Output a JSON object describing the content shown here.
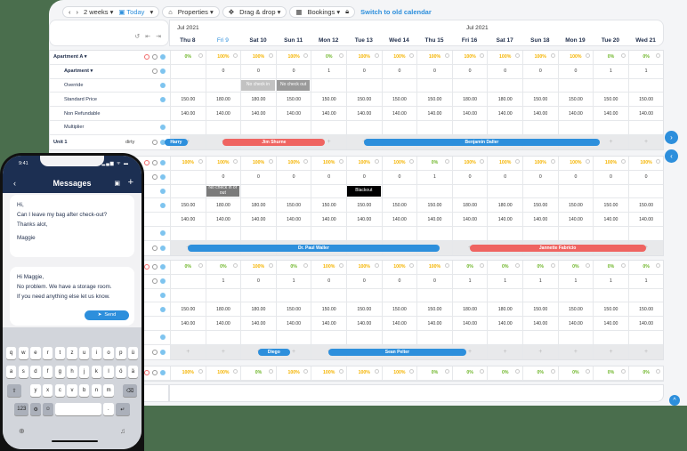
{
  "toolbar": {
    "prev": "‹",
    "next": "›",
    "range": "2 weeks ▾",
    "today": "Today",
    "today_dropdown": "▾",
    "properties": "Properties ▾",
    "dragdrop": "Drag & drop ▾",
    "bookings": "Bookings ▾",
    "switch_link": "Switch to old calendar"
  },
  "header": {
    "month_left": "Jul 2021",
    "month_right": "Jul 2021",
    "controls": [
      "↺",
      "⇤",
      "⇥"
    ],
    "days": [
      "Thu 8",
      "Fri 9",
      "Sat 10",
      "Sun 11",
      "Mon 12",
      "Tue 13",
      "Wed 14",
      "Thu 15",
      "Fri 16",
      "Sat 17",
      "Sun 18",
      "Mon 19",
      "Tue 20",
      "Wed 21"
    ],
    "today_index": 1
  },
  "sections": [
    {
      "title": "Apartment A ▾",
      "occupancy": [
        "0%",
        "100%",
        "100%",
        "100%",
        "0%",
        "100%",
        "100%",
        "100%",
        "100%",
        "100%",
        "100%",
        "100%",
        "0%",
        "0%"
      ],
      "availability_label": "Apartment ▾",
      "availability": [
        "",
        "0",
        "0",
        "0",
        "1",
        "0",
        "0",
        "0",
        "0",
        "0",
        "0",
        "0",
        "1",
        "1"
      ],
      "override_label": "Override",
      "overrides": [
        {
          "col": 2,
          "text": "No check in",
          "color": "#c2c2c2"
        },
        {
          "col": 3,
          "text": "No check out",
          "color": "#9a9a9a"
        }
      ],
      "standard_label": "Standard Price",
      "standard": [
        "150.00",
        "180.00",
        "180.00",
        "150.00",
        "150.00",
        "150.00",
        "150.00",
        "150.00",
        "180.00",
        "180.00",
        "150.00",
        "150.00",
        "150.00",
        "150.00"
      ],
      "nonref_label": "Non Refundable",
      "nonref": [
        "140.00",
        "140.00",
        "140.00",
        "140.00",
        "140.00",
        "140.00",
        "140.00",
        "140.00",
        "140.00",
        "140.00",
        "140.00",
        "140.00",
        "140.00",
        "140.00"
      ],
      "multiplier_label": "Multiplier",
      "unit_label": "Unit 1",
      "unit_status": "dirty",
      "bookings": [
        {
          "name": "Harry",
          "color": "blue"
        },
        {
          "name": "Jim Shurne",
          "color": "red"
        },
        {
          "name": "Benjamin Daller",
          "color": "blue"
        }
      ]
    },
    {
      "occupancy": [
        "100%",
        "100%",
        "100%",
        "100%",
        "100%",
        "100%",
        "100%",
        "0%",
        "100%",
        "100%",
        "100%",
        "100%",
        "100%",
        "100%"
      ],
      "availability": [
        "",
        "0",
        "0",
        "0",
        "0",
        "0",
        "0",
        "1",
        "0",
        "0",
        "0",
        "0",
        "0",
        "0"
      ],
      "overrides": [
        {
          "col": 1,
          "text": "No check in or out",
          "color": "#7b7b7b"
        },
        {
          "col": 5,
          "text": "Blackout",
          "color": "#000000"
        }
      ],
      "standard": [
        "150.00",
        "180.00",
        "180.00",
        "150.00",
        "150.00",
        "150.00",
        "150.00",
        "150.00",
        "180.00",
        "180.00",
        "150.00",
        "150.00",
        "150.00",
        "150.00"
      ],
      "nonref": [
        "140.00",
        "140.00",
        "140.00",
        "140.00",
        "140.00",
        "140.00",
        "140.00",
        "140.00",
        "140.00",
        "140.00",
        "140.00",
        "140.00",
        "140.00",
        "140.00"
      ],
      "bookings": [
        {
          "name": "Dr. Paul Waller",
          "color": "blue"
        },
        {
          "name": "Jannette Fabricio",
          "color": "red"
        }
      ]
    },
    {
      "occupancy": [
        "0%",
        "0%",
        "100%",
        "0%",
        "100%",
        "100%",
        "100%",
        "100%",
        "0%",
        "0%",
        "0%",
        "0%",
        "0%",
        "0%"
      ],
      "availability": [
        "",
        "1",
        "0",
        "1",
        "0",
        "0",
        "0",
        "0",
        "1",
        "1",
        "1",
        "1",
        "1",
        "1"
      ],
      "standard": [
        "150.00",
        "180.00",
        "180.00",
        "150.00",
        "150.00",
        "150.00",
        "150.00",
        "150.00",
        "180.00",
        "180.00",
        "150.00",
        "150.00",
        "150.00",
        "150.00"
      ],
      "nonref": [
        "140.00",
        "140.00",
        "140.00",
        "140.00",
        "140.00",
        "140.00",
        "140.00",
        "140.00",
        "140.00",
        "140.00",
        "140.00",
        "140.00",
        "140.00",
        "140.00"
      ],
      "bookings": [
        {
          "name": "Diego",
          "color": "blue"
        },
        {
          "name": "Sean Pelter",
          "color": "blue"
        }
      ]
    },
    {
      "occupancy": [
        "100%",
        "100%",
        "0%",
        "100%",
        "100%",
        "100%",
        "100%",
        "0%",
        "0%",
        "0%",
        "0%",
        "0%",
        "0%",
        "0%"
      ]
    }
  ],
  "nav": {
    "next": "›",
    "prev": "‹",
    "up": "^"
  },
  "colors": {
    "accent": "#2d8fdc",
    "booking_red": "#ef6461",
    "pct_full": "#f5b400",
    "pct_empty": "#6fb62a",
    "background": "#4a6e4d",
    "phone_header": "#1c2f52"
  },
  "phone": {
    "time": "9:41",
    "status": "▂▄▆ ᯤ ▬",
    "title": "Messages",
    "back": "‹",
    "plus": "+",
    "guest_message": {
      "l1": "Hi,",
      "l2": "Can I leave my bag after check-out?",
      "l3": "Thanks alot,",
      "l4": "Maggie"
    },
    "reply": {
      "l1": "Hi Maggie,",
      "l2": "No problem. We have a storage room.",
      "l3": "If you need anything else let us know."
    },
    "send": "Send",
    "keyboard": {
      "row1": [
        "q",
        "w",
        "e",
        "r",
        "t",
        "z",
        "u",
        "i",
        "o",
        "p",
        "ü"
      ],
      "row2": [
        "a",
        "s",
        "d",
        "f",
        "g",
        "h",
        "j",
        "k",
        "l",
        "ö",
        "ä"
      ],
      "row3": [
        "⇧",
        "y",
        "x",
        "c",
        "v",
        "b",
        "n",
        "m",
        "⌫"
      ],
      "row4": [
        "123",
        "⚙",
        "☺",
        "",
        ".",
        "↵"
      ],
      "globe": "🌐",
      "mic": "🎤"
    }
  }
}
